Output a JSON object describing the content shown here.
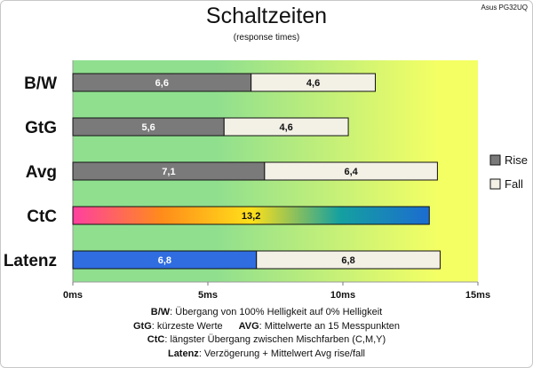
{
  "corner_label": "Asus PG32UQ",
  "chart_data": {
    "type": "bar",
    "stacked": true,
    "orientation": "horizontal",
    "title": "Schaltzeiten",
    "subtitle": "(response times)",
    "categories": [
      "B/W",
      "GtG",
      "Avg",
      "CtC",
      "Latenz"
    ],
    "series": [
      {
        "name": "Rise",
        "values": [
          6.6,
          5.6,
          7.1,
          13.2,
          6.8
        ],
        "value_labels": [
          "6,6",
          "5,6",
          "7,1",
          "13,2",
          "6,8"
        ]
      },
      {
        "name": "Fall",
        "values": [
          4.6,
          4.6,
          6.4,
          null,
          6.8
        ],
        "value_labels": [
          "4,6",
          "4,6",
          "6,4",
          "",
          "6,8"
        ]
      }
    ],
    "xlim": [
      0,
      15
    ],
    "xticks": [
      0,
      5,
      10,
      15
    ],
    "xtick_labels": [
      "0ms",
      "5ms",
      "10ms",
      "15ms"
    ],
    "grid": false,
    "legend_position": "right",
    "background_gradient": [
      "#8fdf8f",
      "#f4ff64"
    ],
    "colors": {
      "rise": "#7a7a7a",
      "fall": "#f3f0e6",
      "latency_rise": "#2f6de0",
      "ctc_gradient": [
        "#ff3fa0",
        "#ff8c1a",
        "#ffe01a",
        "#14a0a0",
        "#1c6cd0"
      ]
    }
  },
  "notes": [
    [
      {
        "b": "B/W",
        "t": ":  Übergang von 100% Helligkeit auf 0% Helligkeit"
      }
    ],
    [
      {
        "b": "GtG",
        "t": ": kürzeste  Werte"
      },
      {
        "gap": true
      },
      {
        "b": "AVG",
        "t": ": Mittelwerte  an 15 Messpunkten"
      }
    ],
    [
      {
        "b": "CtC",
        "t": ": längster Übergang  zwischen Mischfarben (C,M,Y)"
      }
    ],
    [
      {
        "b": "Latenz",
        "t": ": Verzögerung  + Mittelwert  Avg rise/fall"
      }
    ]
  ]
}
